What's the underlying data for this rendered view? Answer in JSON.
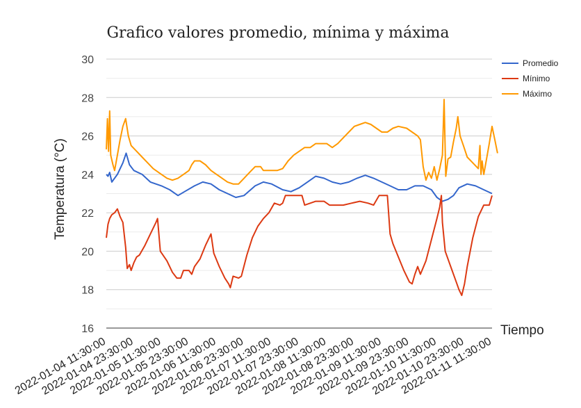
{
  "chart_data": {
    "type": "line",
    "title": "Grafico valores promedio, mínima y máxima",
    "xlabel": "Tiempo",
    "ylabel": "Temperatura (°C)",
    "ylim": [
      16,
      30
    ],
    "yticks": [
      "16",
      "18",
      "20",
      "22",
      "24",
      "26",
      "28",
      "30"
    ],
    "x_ticks": [
      "2022-01-04 11:30:00",
      "2022-01-04 23:30:00",
      "2022-01-05 11:30:00",
      "2022-01-05 23:30:00",
      "2022-01-06 11:30:00",
      "2022-01-06 23:30:00",
      "2022-01-07 11:30:00",
      "2022-01-07 23:30:00",
      "2022-01-08 11:30:00",
      "2022-01-08 23:30:00",
      "2022-01-09 11:30:00",
      "2022-01-09 23:30:00",
      "2022-01-10 11:30:00",
      "2022-01-10 23:30:00",
      "2022-01-11 11:30:00"
    ],
    "x_range": [
      0,
      7
    ],
    "x_unit": "days from 2022-01-04 11:30:00",
    "legend_position": "top-right",
    "grid": true,
    "series": [
      {
        "name": "Promedio",
        "color": "#3366cc",
        "points": [
          [
            0,
            24.0
          ],
          [
            0.03,
            23.9
          ],
          [
            0.06,
            24.1
          ],
          [
            0.1,
            23.6
          ],
          [
            0.2,
            24.0
          ],
          [
            0.3,
            24.6
          ],
          [
            0.36,
            25.1
          ],
          [
            0.42,
            24.5
          ],
          [
            0.5,
            24.2
          ],
          [
            0.65,
            24.0
          ],
          [
            0.8,
            23.6
          ],
          [
            1.0,
            23.4
          ],
          [
            1.15,
            23.2
          ],
          [
            1.3,
            22.9
          ],
          [
            1.42,
            23.1
          ],
          [
            1.6,
            23.4
          ],
          [
            1.75,
            23.6
          ],
          [
            1.9,
            23.5
          ],
          [
            2.05,
            23.2
          ],
          [
            2.2,
            23.0
          ],
          [
            2.35,
            22.8
          ],
          [
            2.5,
            22.9
          ],
          [
            2.7,
            23.4
          ],
          [
            2.85,
            23.6
          ],
          [
            3.0,
            23.5
          ],
          [
            3.2,
            23.2
          ],
          [
            3.35,
            23.1
          ],
          [
            3.5,
            23.3
          ],
          [
            3.65,
            23.6
          ],
          [
            3.8,
            23.9
          ],
          [
            3.95,
            23.8
          ],
          [
            4.1,
            23.6
          ],
          [
            4.25,
            23.5
          ],
          [
            4.4,
            23.6
          ],
          [
            4.55,
            23.8
          ],
          [
            4.7,
            23.95
          ],
          [
            4.85,
            23.8
          ],
          [
            5.0,
            23.6
          ],
          [
            5.15,
            23.4
          ],
          [
            5.3,
            23.2
          ],
          [
            5.45,
            23.2
          ],
          [
            5.6,
            23.4
          ],
          [
            5.75,
            23.4
          ],
          [
            5.9,
            23.2
          ],
          [
            6.0,
            22.8
          ],
          [
            6.1,
            22.6
          ],
          [
            6.2,
            22.7
          ],
          [
            6.3,
            22.9
          ],
          [
            6.4,
            23.3
          ],
          [
            6.55,
            23.5
          ],
          [
            6.7,
            23.4
          ],
          [
            6.85,
            23.2
          ],
          [
            7.0,
            23.0
          ]
        ]
      },
      {
        "name": "Mínimo",
        "color": "#dc3912",
        "points": [
          [
            0,
            20.7
          ],
          [
            0.03,
            21.4
          ],
          [
            0.06,
            21.7
          ],
          [
            0.1,
            21.9
          ],
          [
            0.15,
            22.0
          ],
          [
            0.2,
            22.2
          ],
          [
            0.25,
            21.8
          ],
          [
            0.3,
            21.5
          ],
          [
            0.35,
            20.2
          ],
          [
            0.38,
            19.1
          ],
          [
            0.42,
            19.3
          ],
          [
            0.45,
            19.0
          ],
          [
            0.5,
            19.4
          ],
          [
            0.55,
            19.7
          ],
          [
            0.6,
            19.8
          ],
          [
            0.7,
            20.3
          ],
          [
            0.8,
            20.9
          ],
          [
            0.9,
            21.5
          ],
          [
            0.93,
            21.7
          ],
          [
            0.98,
            20.0
          ],
          [
            1.1,
            19.5
          ],
          [
            1.2,
            18.9
          ],
          [
            1.28,
            18.6
          ],
          [
            1.35,
            18.6
          ],
          [
            1.4,
            19.0
          ],
          [
            1.5,
            19.0
          ],
          [
            1.55,
            18.8
          ],
          [
            1.6,
            19.2
          ],
          [
            1.7,
            19.6
          ],
          [
            1.8,
            20.3
          ],
          [
            1.9,
            20.9
          ],
          [
            1.95,
            19.9
          ],
          [
            2.05,
            19.2
          ],
          [
            2.15,
            18.6
          ],
          [
            2.22,
            18.3
          ],
          [
            2.25,
            18.1
          ],
          [
            2.3,
            18.7
          ],
          [
            2.4,
            18.6
          ],
          [
            2.45,
            18.7
          ],
          [
            2.55,
            19.8
          ],
          [
            2.65,
            20.7
          ],
          [
            2.75,
            21.3
          ],
          [
            2.85,
            21.7
          ],
          [
            2.95,
            22.0
          ],
          [
            3.05,
            22.5
          ],
          [
            3.15,
            22.4
          ],
          [
            3.2,
            22.5
          ],
          [
            3.25,
            22.9
          ],
          [
            3.4,
            22.9
          ],
          [
            3.55,
            22.9
          ],
          [
            3.6,
            22.4
          ],
          [
            3.7,
            22.5
          ],
          [
            3.8,
            22.6
          ],
          [
            3.95,
            22.6
          ],
          [
            4.05,
            22.4
          ],
          [
            4.3,
            22.4
          ],
          [
            4.45,
            22.5
          ],
          [
            4.6,
            22.6
          ],
          [
            4.75,
            22.5
          ],
          [
            4.85,
            22.4
          ],
          [
            4.95,
            22.9
          ],
          [
            5.1,
            22.9
          ],
          [
            5.15,
            20.9
          ],
          [
            5.2,
            20.4
          ],
          [
            5.3,
            19.7
          ],
          [
            5.4,
            19.0
          ],
          [
            5.5,
            18.4
          ],
          [
            5.55,
            18.3
          ],
          [
            5.6,
            18.8
          ],
          [
            5.65,
            19.2
          ],
          [
            5.7,
            18.8
          ],
          [
            5.8,
            19.5
          ],
          [
            5.9,
            20.6
          ],
          [
            6.0,
            21.7
          ],
          [
            6.05,
            22.3
          ],
          [
            6.08,
            22.9
          ],
          [
            6.1,
            21.5
          ],
          [
            6.15,
            20.0
          ],
          [
            6.25,
            19.2
          ],
          [
            6.35,
            18.4
          ],
          [
            6.4,
            18.0
          ],
          [
            6.45,
            17.7
          ],
          [
            6.5,
            18.3
          ],
          [
            6.55,
            19.2
          ],
          [
            6.65,
            20.7
          ],
          [
            6.75,
            21.8
          ],
          [
            6.85,
            22.4
          ],
          [
            6.95,
            22.4
          ],
          [
            7.0,
            22.9
          ]
        ]
      },
      {
        "name": "Máximo",
        "color": "#ff9900",
        "points": [
          [
            0,
            25.3
          ],
          [
            0.02,
            26.9
          ],
          [
            0.04,
            25.2
          ],
          [
            0.06,
            27.3
          ],
          [
            0.08,
            25.0
          ],
          [
            0.12,
            24.5
          ],
          [
            0.15,
            24.2
          ],
          [
            0.2,
            25.0
          ],
          [
            0.25,
            25.8
          ],
          [
            0.3,
            26.5
          ],
          [
            0.35,
            26.9
          ],
          [
            0.4,
            26.0
          ],
          [
            0.45,
            25.5
          ],
          [
            0.55,
            25.2
          ],
          [
            0.65,
            24.9
          ],
          [
            0.75,
            24.6
          ],
          [
            0.85,
            24.3
          ],
          [
            1.0,
            24.0
          ],
          [
            1.1,
            23.8
          ],
          [
            1.2,
            23.7
          ],
          [
            1.3,
            23.8
          ],
          [
            1.4,
            24.0
          ],
          [
            1.5,
            24.2
          ],
          [
            1.55,
            24.5
          ],
          [
            1.6,
            24.7
          ],
          [
            1.7,
            24.7
          ],
          [
            1.8,
            24.5
          ],
          [
            1.9,
            24.2
          ],
          [
            2.0,
            24.0
          ],
          [
            2.1,
            23.8
          ],
          [
            2.2,
            23.6
          ],
          [
            2.3,
            23.5
          ],
          [
            2.4,
            23.5
          ],
          [
            2.5,
            23.8
          ],
          [
            2.6,
            24.1
          ],
          [
            2.7,
            24.4
          ],
          [
            2.8,
            24.4
          ],
          [
            2.85,
            24.2
          ],
          [
            3.0,
            24.2
          ],
          [
            3.1,
            24.2
          ],
          [
            3.2,
            24.3
          ],
          [
            3.3,
            24.7
          ],
          [
            3.4,
            25.0
          ],
          [
            3.5,
            25.2
          ],
          [
            3.6,
            25.4
          ],
          [
            3.7,
            25.4
          ],
          [
            3.8,
            25.6
          ],
          [
            3.9,
            25.6
          ],
          [
            4.0,
            25.6
          ],
          [
            4.1,
            25.4
          ],
          [
            4.2,
            25.6
          ],
          [
            4.3,
            25.9
          ],
          [
            4.4,
            26.2
          ],
          [
            4.5,
            26.5
          ],
          [
            4.6,
            26.6
          ],
          [
            4.7,
            26.7
          ],
          [
            4.8,
            26.6
          ],
          [
            4.9,
            26.4
          ],
          [
            5.0,
            26.2
          ],
          [
            5.1,
            26.2
          ],
          [
            5.2,
            26.4
          ],
          [
            5.3,
            26.5
          ],
          [
            5.45,
            26.4
          ],
          [
            5.55,
            26.2
          ],
          [
            5.65,
            26.0
          ],
          [
            5.7,
            25.8
          ],
          [
            5.75,
            24.4
          ],
          [
            5.8,
            23.7
          ],
          [
            5.85,
            24.1
          ],
          [
            5.9,
            23.8
          ],
          [
            5.95,
            24.4
          ],
          [
            6.0,
            23.7
          ],
          [
            6.05,
            24.3
          ],
          [
            6.1,
            25.0
          ],
          [
            6.13,
            27.9
          ],
          [
            6.16,
            23.9
          ],
          [
            6.2,
            24.8
          ],
          [
            6.25,
            24.9
          ],
          [
            6.3,
            25.7
          ],
          [
            6.35,
            26.4
          ],
          [
            6.38,
            27.0
          ],
          [
            6.42,
            26.0
          ],
          [
            6.48,
            25.5
          ],
          [
            6.55,
            24.9
          ],
          [
            6.65,
            24.6
          ],
          [
            6.75,
            24.3
          ],
          [
            6.78,
            25.5
          ],
          [
            6.8,
            24.0
          ],
          [
            6.82,
            24.7
          ],
          [
            6.85,
            24.0
          ],
          [
            6.9,
            24.8
          ],
          [
            6.95,
            25.6
          ],
          [
            7.0,
            26.5
          ],
          [
            7.05,
            25.8
          ],
          [
            7.1,
            25.1
          ]
        ]
      }
    ]
  }
}
